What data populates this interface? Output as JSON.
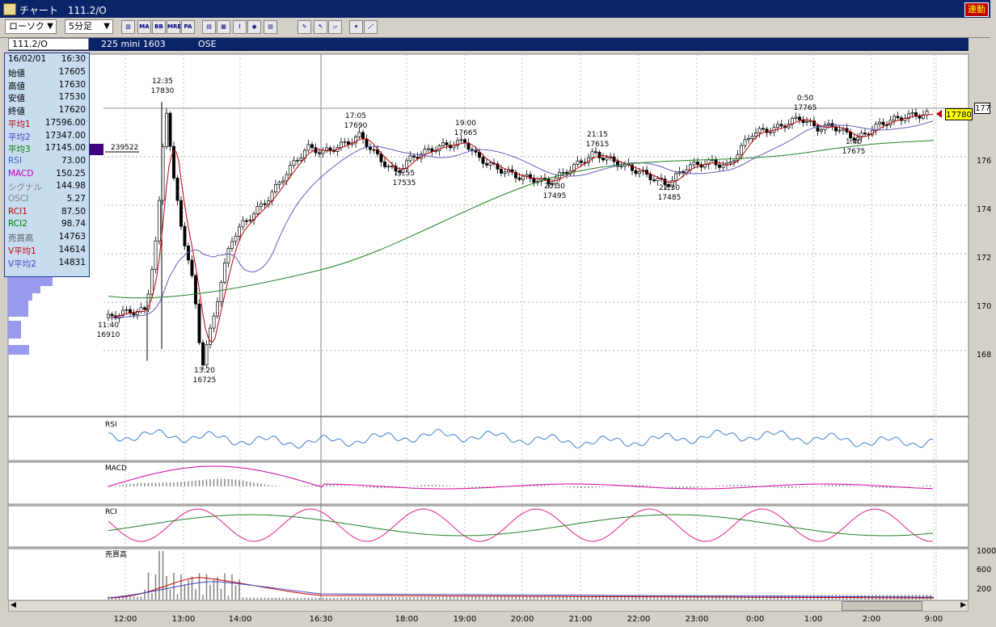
{
  "window": {
    "title": "チャート　111.2/O",
    "link_badge": "連動"
  },
  "toolbar": {
    "chart_type": "ローソク",
    "interval": "5分足",
    "buttons": [
      {
        "name": "bar-type-icon",
        "label": "▥"
      },
      {
        "name": "ma-button",
        "label": "MA"
      },
      {
        "name": "bb-button",
        "label": "BB"
      },
      {
        "name": "mre-button",
        "label": "MRE"
      },
      {
        "name": "pa-button",
        "label": "PA"
      },
      {
        "name": "candle-icon",
        "label": "▤"
      },
      {
        "name": "compare-icon",
        "label": "▦"
      },
      {
        "name": "split-icon",
        "label": "⌇"
      },
      {
        "name": "zoom-icon",
        "label": "◉"
      },
      {
        "name": "list-icon",
        "label": "▤"
      },
      {
        "name": "pen-icon",
        "label": "✎"
      },
      {
        "name": "cursor-icon",
        "label": "↖"
      },
      {
        "name": "eraser-icon",
        "label": "▱"
      },
      {
        "name": "settings-icon",
        "label": "✦"
      },
      {
        "name": "trend-icon",
        "label": "⋰"
      }
    ]
  },
  "infobar": {
    "symbol": "111.2/O",
    "instrument": "225 mini 1603",
    "exchange": "OSE"
  },
  "datapanel": {
    "date": "16/02/01",
    "time": "16:30",
    "rows": [
      {
        "label": "始値",
        "value": "17605",
        "color": "#000000"
      },
      {
        "label": "高値",
        "value": "17630",
        "color": "#000000"
      },
      {
        "label": "安値",
        "value": "17530",
        "color": "#000000"
      },
      {
        "label": "終値",
        "value": "17620",
        "color": "#000000"
      },
      {
        "label": "平均1",
        "value": "17596.00",
        "color": "#c00000"
      },
      {
        "label": "平均2",
        "value": "17347.00",
        "color": "#4040c0"
      },
      {
        "label": "平均3",
        "value": "17145.00",
        "color": "#008000"
      },
      {
        "label": "RSI",
        "value": "73.00",
        "color": "#4060c0"
      },
      {
        "label": "MACD",
        "value": "150.25",
        "color": "#c000c0"
      },
      {
        "label": "シグナル",
        "value": "144.98",
        "color": "#808080"
      },
      {
        "label": "OSCI",
        "value": "5.27",
        "color": "#808080"
      },
      {
        "label": "RCI1",
        "value": "87.50",
        "color": "#c00000"
      },
      {
        "label": "RCI2",
        "value": "98.74",
        "color": "#008000"
      },
      {
        "label": "売買高",
        "value": "14763",
        "color": "#606060"
      },
      {
        "label": "V平均1",
        "value": "14614",
        "color": "#c00000"
      },
      {
        "label": "V平均2",
        "value": "14831",
        "color": "#4040c0"
      }
    ]
  },
  "volume_profile_label": "239522",
  "price_annotations": [
    {
      "time": "12:35",
      "price": "17830"
    },
    {
      "time": "11:40",
      "price": "16910"
    },
    {
      "time": "13:20",
      "price": "16725"
    },
    {
      "time": "17:05",
      "price": "17690"
    },
    {
      "time": "17:55",
      "price": "17535"
    },
    {
      "time": "19:00",
      "price": "17665"
    },
    {
      "time": "20:30",
      "price": "17495"
    },
    {
      "time": "21:15",
      "price": "17615"
    },
    {
      "time": "22:30",
      "price": "17485"
    },
    {
      "time": "0:50",
      "price": "17765"
    },
    {
      "time": "1:40",
      "price": "17675"
    }
  ],
  "current_price": "17780",
  "price_axis_partial": [
    "177",
    "176",
    "174",
    "172",
    "170",
    "168"
  ],
  "sub_panels": {
    "rsi": "RSI",
    "macd": "MACD",
    "rci": "RCI",
    "volume": "売買高"
  },
  "volume_axis": [
    "1000",
    "600",
    "200"
  ],
  "time_axis": [
    "12:00",
    "13:00",
    "14:00",
    "16:30",
    "18:00",
    "19:00",
    "20:00",
    "21:00",
    "22:00",
    "23:00",
    "0:00",
    "1:00",
    "2:00",
    "9:00"
  ],
  "colors": {
    "title_bar": "#0a246a",
    "chart_bg": "#ffffff",
    "ma1": "#c00000",
    "ma2": "#6060c0",
    "ma3": "#208020",
    "rsi": "#4080d0",
    "macd": "#d000a0",
    "rci1": "#e0208c",
    "rci2": "#208020"
  }
}
